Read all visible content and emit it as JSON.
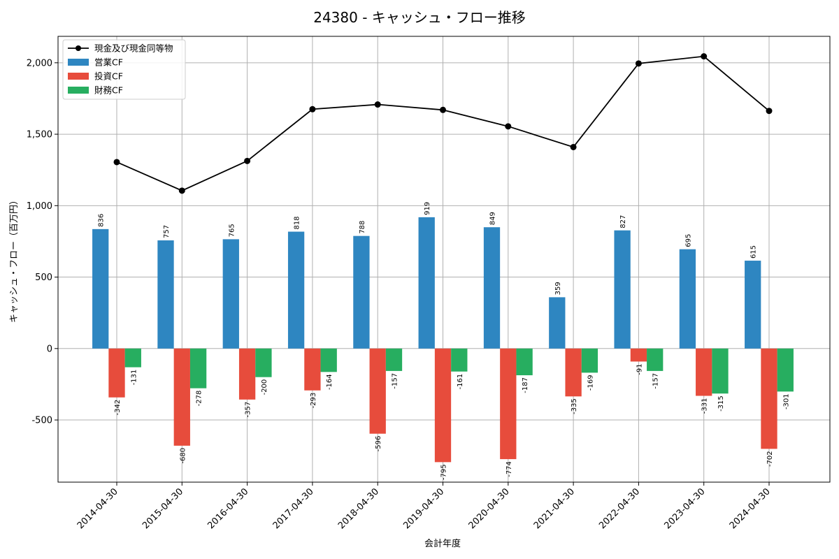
{
  "chart_data": {
    "type": "bar",
    "title": "24380 - キャッシュ・フロー推移",
    "xlabel": "会計年度",
    "ylabel": "キャッシュ・フロー（百万円）",
    "categories": [
      "2014-04-30",
      "2015-04-30",
      "2016-04-30",
      "2017-04-30",
      "2018-04-30",
      "2019-04-30",
      "2020-04-30",
      "2021-04-30",
      "2022-04-30",
      "2023-04-30",
      "2024-04-30"
    ],
    "ylim": [
      -935,
      2185
    ],
    "yticks": [
      -500,
      0,
      500,
      1000,
      1500,
      2000
    ],
    "ytick_labels": [
      "-500",
      "0",
      "500",
      "1,000",
      "1,500",
      "2,000"
    ],
    "grid": true,
    "legend_position": "top-left",
    "series": [
      {
        "name": "営業CF",
        "kind": "bar",
        "color": "#2E86C1",
        "values": [
          836,
          757,
          765,
          818,
          788,
          919,
          849,
          359,
          827,
          695,
          615
        ]
      },
      {
        "name": "投資CF",
        "kind": "bar",
        "color": "#E74C3C",
        "values": [
          -342,
          -680,
          -357,
          -293,
          -596,
          -795,
          -774,
          -335,
          -91,
          -331,
          -702
        ]
      },
      {
        "name": "財務CF",
        "kind": "bar",
        "color": "#27AE60",
        "values": [
          -131,
          -278,
          -200,
          -164,
          -157,
          -161,
          -187,
          -169,
          -157,
          -315,
          -301
        ]
      },
      {
        "name": "現金及び現金同等物",
        "kind": "line",
        "color": "#000000",
        "values": [
          1305,
          1105,
          1313,
          1675,
          1708,
          1670,
          1555,
          1410,
          1995,
          2045,
          1663
        ]
      }
    ]
  }
}
